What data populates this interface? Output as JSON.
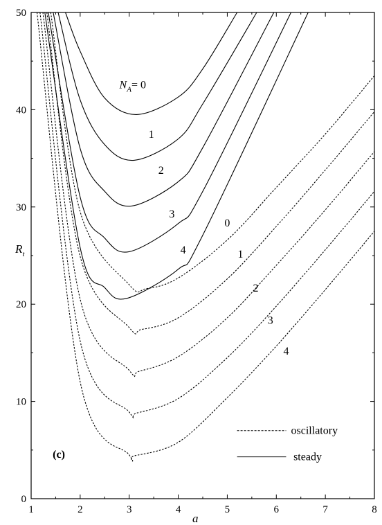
{
  "chart_data": {
    "type": "line",
    "title": "",
    "xlabel": "a",
    "ylabel": "R",
    "ylabel_sub": "t",
    "xlim": [
      1,
      8
    ],
    "ylim": [
      0,
      50
    ],
    "x_ticks": [
      "1",
      "2",
      "3",
      "4",
      "5",
      "6",
      "7",
      "8"
    ],
    "y_ticks": [
      "0",
      "10",
      "20",
      "30",
      "40",
      "50"
    ],
    "panel_label": "(c)",
    "legend": [
      {
        "style": "dashed",
        "label": "oscillatory"
      },
      {
        "style": "solid",
        "label": "steady"
      }
    ],
    "annotation_na": {
      "main": "N",
      "sub": "A",
      "rest": "= 0"
    },
    "steady_labels": [
      "1",
      "2",
      "3",
      "4"
    ],
    "oscillatory_labels": [
      "0",
      "1",
      "2",
      "3",
      "4"
    ],
    "series": [
      {
        "style": "solid",
        "label": "0",
        "min_a": 3.15,
        "min_r": 39.5,
        "points": [
          [
            1.7,
            50
          ],
          [
            2.0,
            46.0
          ],
          [
            2.5,
            41.2
          ],
          [
            3.15,
            39.5
          ],
          [
            4.0,
            41.3
          ],
          [
            4.5,
            44.2
          ],
          [
            5.2,
            50
          ]
        ]
      },
      {
        "style": "solid",
        "label": "1",
        "min_a": 3.1,
        "min_r": 34.8,
        "points": [
          [
            1.55,
            50
          ],
          [
            2.0,
            41.0
          ],
          [
            2.5,
            36.4
          ],
          [
            3.1,
            34.8
          ],
          [
            4.0,
            37.0
          ],
          [
            4.5,
            40.6
          ],
          [
            5.6,
            50
          ]
        ]
      },
      {
        "style": "solid",
        "label": "2",
        "min_a": 3.05,
        "min_r": 30.1,
        "points": [
          [
            1.45,
            50
          ],
          [
            2.0,
            36.0
          ],
          [
            2.5,
            31.6
          ],
          [
            3.05,
            30.1
          ],
          [
            4.0,
            32.6
          ],
          [
            4.5,
            36.1
          ],
          [
            5.95,
            50
          ]
        ]
      },
      {
        "style": "solid",
        "label": "3",
        "min_a": 3.0,
        "min_r": 25.4,
        "points": [
          [
            1.35,
            50
          ],
          [
            2.0,
            31.0
          ],
          [
            2.5,
            26.8
          ],
          [
            3.0,
            25.4
          ],
          [
            4.0,
            28.3
          ],
          [
            4.5,
            31.6
          ],
          [
            6.3,
            50
          ]
        ]
      },
      {
        "style": "solid",
        "label": "4",
        "min_a": 2.95,
        "min_r": 20.6,
        "points": [
          [
            1.28,
            50
          ],
          [
            2.0,
            25.8
          ],
          [
            2.5,
            21.7
          ],
          [
            2.95,
            20.6
          ],
          [
            4.0,
            23.6
          ],
          [
            4.5,
            27.1
          ],
          [
            6.65,
            50
          ]
        ]
      },
      {
        "style": "dashed",
        "label": "0",
        "min_a": 3.35,
        "min_r": 21.6,
        "points": [
          [
            1.4,
            50
          ],
          [
            2.0,
            29.5
          ],
          [
            3.0,
            22.0
          ],
          [
            3.35,
            21.6
          ],
          [
            4.0,
            22.7
          ],
          [
            5.0,
            26.6
          ],
          [
            6.0,
            32.0
          ],
          [
            7.0,
            37.5
          ],
          [
            8.0,
            43.5
          ]
        ]
      },
      {
        "style": "dashed",
        "label": "1",
        "min_a": 3.25,
        "min_r": 17.4,
        "points": [
          [
            1.32,
            50
          ],
          [
            2.0,
            24.9
          ],
          [
            3.0,
            17.6
          ],
          [
            3.25,
            17.4
          ],
          [
            4.0,
            18.6
          ],
          [
            5.0,
            22.6
          ],
          [
            6.0,
            28.0
          ],
          [
            7.0,
            33.8
          ],
          [
            8.0,
            39.8
          ]
        ]
      },
      {
        "style": "dashed",
        "label": "2",
        "min_a": 3.2,
        "min_r": 13.1,
        "points": [
          [
            1.24,
            50
          ],
          [
            2.0,
            20.5
          ],
          [
            3.0,
            13.2
          ],
          [
            3.2,
            13.1
          ],
          [
            4.0,
            14.6
          ],
          [
            5.0,
            18.6
          ],
          [
            6.0,
            24.0
          ],
          [
            7.0,
            29.7
          ],
          [
            8.0,
            35.7
          ]
        ]
      },
      {
        "style": "dashed",
        "label": "3",
        "min_a": 3.15,
        "min_r": 8.8,
        "points": [
          [
            1.18,
            50
          ],
          [
            2.0,
            16.2
          ],
          [
            3.0,
            8.9
          ],
          [
            3.15,
            8.8
          ],
          [
            4.0,
            10.3
          ],
          [
            5.0,
            14.5
          ],
          [
            6.0,
            19.8
          ],
          [
            7.0,
            25.6
          ],
          [
            8.0,
            31.6
          ]
        ]
      },
      {
        "style": "dashed",
        "label": "4",
        "min_a": 3.1,
        "min_r": 4.4,
        "points": [
          [
            1.12,
            50
          ],
          [
            2.0,
            12.0
          ],
          [
            3.0,
            4.5
          ],
          [
            3.1,
            4.4
          ],
          [
            4.0,
            5.8
          ],
          [
            5.0,
            10.4
          ],
          [
            6.0,
            15.7
          ],
          [
            7.0,
            21.5
          ],
          [
            8.0,
            27.5
          ]
        ]
      }
    ]
  }
}
